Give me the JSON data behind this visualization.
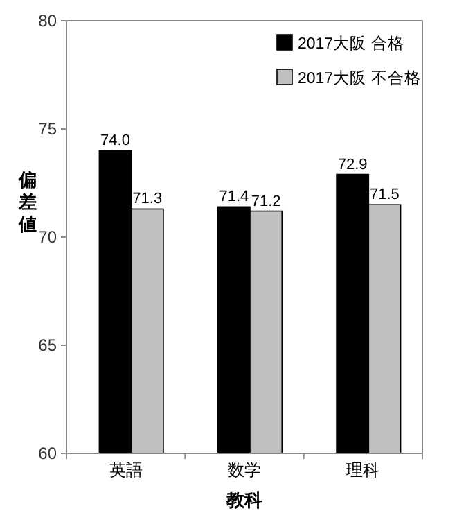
{
  "chart_data": {
    "type": "bar",
    "xlabel": "教科",
    "ylabel": "偏差値",
    "categories": [
      "英語",
      "数学",
      "理科"
    ],
    "series": [
      {
        "name": "2017大阪 合格",
        "color": "#000000",
        "values": [
          74.0,
          71.4,
          72.9
        ],
        "value_labels": [
          "74.0",
          "71.4",
          "72.9"
        ]
      },
      {
        "name": "2017大阪 不合格",
        "color": "#c0c0c0",
        "values": [
          71.3,
          71.2,
          71.5
        ],
        "value_labels": [
          "71.3",
          "71.2",
          "71.5"
        ]
      }
    ],
    "ylim": [
      60,
      80
    ],
    "yticks": [
      60,
      65,
      70,
      75,
      80
    ],
    "legend": "top right"
  }
}
